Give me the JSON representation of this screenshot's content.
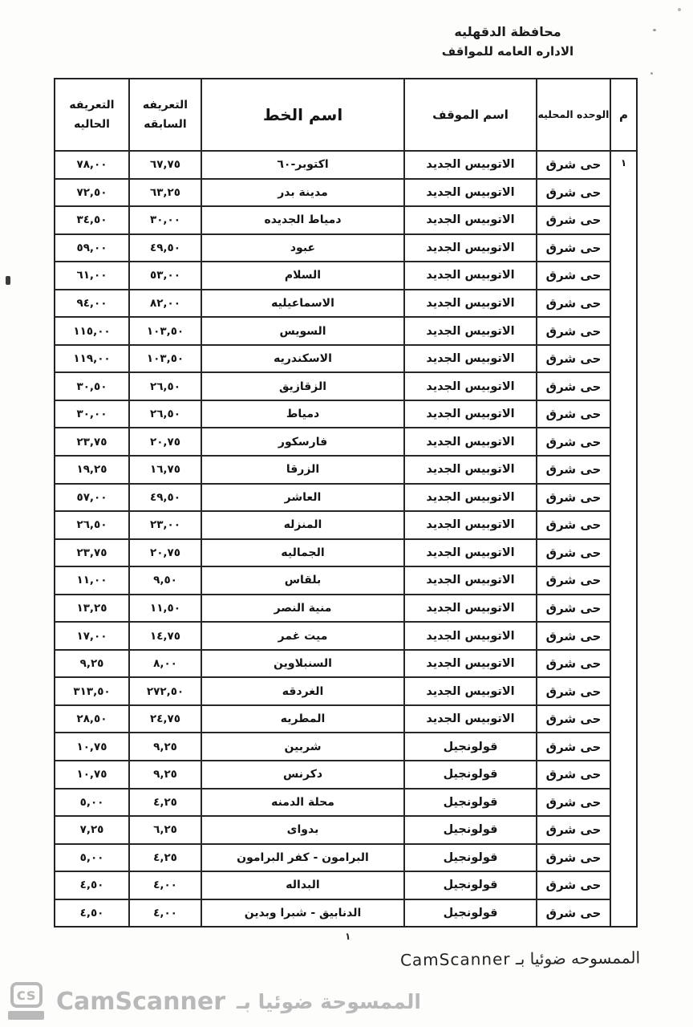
{
  "page": {
    "header_org_line1": "محافظة الدقهليه",
    "header_org_line2": "الاداره العامه للمواقف",
    "page_number": "١",
    "scanned_note": "الممسوحه ضوئيا بـ CamScanner",
    "watermark": {
      "logo_text": "cs",
      "brand": "CamScanner",
      "arabic": "الممسوحة ضوئيا بـ",
      "color": "#b9b9b9"
    },
    "ink_color": "#161616",
    "paper_color": "#fdfdfc"
  },
  "table": {
    "serial": "١",
    "headers": {
      "serial": "م",
      "unit": "الوحده المحليه",
      "stop": "اسم الموقف",
      "line": "اسم الخط",
      "prev": "التعريفه السابقه",
      "curr": "التعريفه الحاليه"
    },
    "rows": [
      {
        "unit": "حى شرق",
        "stop": "الاتوبيس الجديد",
        "line": "اكتوبر-٦٠",
        "prev": "٦٧,٧٥",
        "curr": "٧٨,٠٠"
      },
      {
        "unit": "حى شرق",
        "stop": "الاتوبيس الجديد",
        "line": "مدينة بدر",
        "prev": "٦٣,٢٥",
        "curr": "٧٢,٥٠"
      },
      {
        "unit": "حى شرق",
        "stop": "الاتوبيس الجديد",
        "line": "دمياط الجديده",
        "prev": "٣٠,٠٠",
        "curr": "٣٤,٥٠"
      },
      {
        "unit": "حى شرق",
        "stop": "الاتوبيس الجديد",
        "line": "عبود",
        "prev": "٤٩,٥٠",
        "curr": "٥٩,٠٠"
      },
      {
        "unit": "حى شرق",
        "stop": "الاتوبيس الجديد",
        "line": "السلام",
        "prev": "٥٣,٠٠",
        "curr": "٦١,٠٠"
      },
      {
        "unit": "حى شرق",
        "stop": "الاتوبيس الجديد",
        "line": "الاسماعيليه",
        "prev": "٨٢,٠٠",
        "curr": "٩٤,٠٠"
      },
      {
        "unit": "حى شرق",
        "stop": "الاتوبيس الجديد",
        "line": "السويس",
        "prev": "١٠٣,٥٠",
        "curr": "١١٥,٠٠"
      },
      {
        "unit": "حى شرق",
        "stop": "الاتوبيس الجديد",
        "line": "الاسكندريه",
        "prev": "١٠٣,٥٠",
        "curr": "١١٩,٠٠"
      },
      {
        "unit": "حى شرق",
        "stop": "الاتوبيس الجديد",
        "line": "الزقازيق",
        "prev": "٢٦,٥٠",
        "curr": "٣٠,٥٠"
      },
      {
        "unit": "حى شرق",
        "stop": "الاتوبيس الجديد",
        "line": "دمياط",
        "prev": "٢٦,٥٠",
        "curr": "٣٠,٠٠"
      },
      {
        "unit": "حى شرق",
        "stop": "الاتوبيس الجديد",
        "line": "فارسكور",
        "prev": "٢٠,٧٥",
        "curr": "٢٣,٧٥"
      },
      {
        "unit": "حى شرق",
        "stop": "الاتوبيس الجديد",
        "line": "الزرقا",
        "prev": "١٦,٧٥",
        "curr": "١٩,٢٥"
      },
      {
        "unit": "حى شرق",
        "stop": "الاتوبيس الجديد",
        "line": "العاشر",
        "prev": "٤٩,٥٠",
        "curr": "٥٧,٠٠"
      },
      {
        "unit": "حى شرق",
        "stop": "الاتوبيس الجديد",
        "line": "المنزله",
        "prev": "٢٣,٠٠",
        "curr": "٢٦,٥٠"
      },
      {
        "unit": "حى شرق",
        "stop": "الاتوبيس الجديد",
        "line": "الجماليه",
        "prev": "٢٠,٧٥",
        "curr": "٢٣,٧٥"
      },
      {
        "unit": "حى شرق",
        "stop": "الاتوبيس الجديد",
        "line": "بلقاس",
        "prev": "٩,٥٠",
        "curr": "١١,٠٠"
      },
      {
        "unit": "حى شرق",
        "stop": "الاتوبيس الجديد",
        "line": "منية النصر",
        "prev": "١١,٥٠",
        "curr": "١٣,٢٥"
      },
      {
        "unit": "حى شرق",
        "stop": "الاتوبيس الجديد",
        "line": "ميت غمر",
        "prev": "١٤,٧٥",
        "curr": "١٧,٠٠"
      },
      {
        "unit": "حى شرق",
        "stop": "الاتوبيس الجديد",
        "line": "السنبلاوين",
        "prev": "٨,٠٠",
        "curr": "٩,٢٥"
      },
      {
        "unit": "حى شرق",
        "stop": "الاتوبيس الجديد",
        "line": "الغردقه",
        "prev": "٢٧٢,٥٠",
        "curr": "٣١٣,٥٠"
      },
      {
        "unit": "حى شرق",
        "stop": "الاتوبيس الجديد",
        "line": "المطريه",
        "prev": "٢٤,٧٥",
        "curr": "٢٨,٥٠"
      },
      {
        "unit": "حى شرق",
        "stop": "قولونجيل",
        "line": "شربين",
        "prev": "٩,٢٥",
        "curr": "١٠,٧٥"
      },
      {
        "unit": "حى شرق",
        "stop": "قولونجيل",
        "line": "دكرنس",
        "prev": "٩,٢٥",
        "curr": "١٠,٧٥"
      },
      {
        "unit": "حى شرق",
        "stop": "قولونجيل",
        "line": "محلة الدمنه",
        "prev": "٤,٢٥",
        "curr": "٥,٠٠"
      },
      {
        "unit": "حى شرق",
        "stop": "قولونجيل",
        "line": "بدواى",
        "prev": "٦,٢٥",
        "curr": "٧,٢٥"
      },
      {
        "unit": "حى شرق",
        "stop": "قولونجيل",
        "line": "البرامون - كفر البرامون",
        "prev": "٤,٢٥",
        "curr": "٥,٠٠"
      },
      {
        "unit": "حى شرق",
        "stop": "قولونجيل",
        "line": "البداله",
        "prev": "٤,٠٠",
        "curr": "٤,٥٠"
      },
      {
        "unit": "حى شرق",
        "stop": "قولونجيل",
        "line": "الدنابيق - شبرا وبدين",
        "prev": "٤,٠٠",
        "curr": "٤,٥٠"
      }
    ]
  }
}
